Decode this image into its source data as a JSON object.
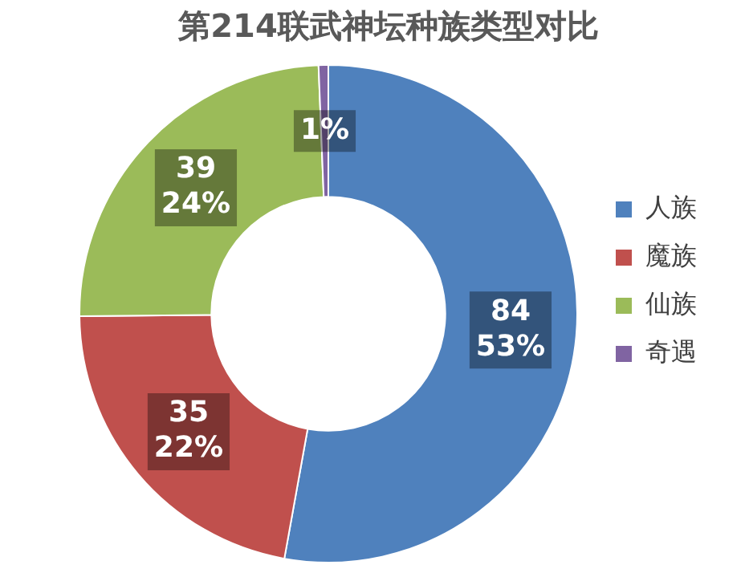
{
  "chart_data": {
    "type": "donut",
    "title": "第214联武神坛种族类型对比",
    "categories": [
      "人族",
      "魔族",
      "仙族",
      "奇遇"
    ],
    "values": [
      84,
      35,
      39,
      1
    ],
    "colors": [
      "#4f81bd",
      "#c0504d",
      "#9bbb59",
      "#8064a2"
    ],
    "value_labels": [
      "84\n53%",
      "35\n22%",
      "39\n24%",
      "1%"
    ],
    "legend": "right"
  }
}
